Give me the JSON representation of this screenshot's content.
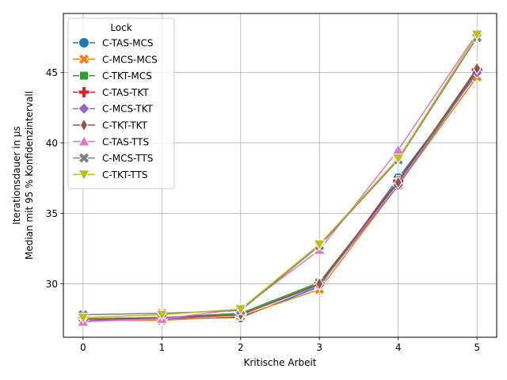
{
  "chart_data": {
    "type": "line",
    "title": "",
    "xlabel": "Kritische Arbeit",
    "ylabel_lines": [
      "Iterationsdauer in µs",
      "Median mit 95 % Konfidenzintervall"
    ],
    "x": [
      0,
      1,
      2,
      3,
      4,
      5
    ],
    "xlim": [
      -0.25,
      5.25
    ],
    "ylim": [
      26.2,
      49.2
    ],
    "xticks": [
      0,
      1,
      2,
      3,
      4,
      5
    ],
    "yticks": [
      30,
      35,
      40,
      45
    ],
    "grid": true,
    "legend": {
      "title": "Lock",
      "placement": "top-left"
    },
    "series": [
      {
        "name": "C-TAS-MCS",
        "color": "#1f77b4",
        "marker": "circle",
        "values": [
          27.5,
          27.5,
          27.6,
          29.8,
          37.5,
          44.9
        ]
      },
      {
        "name": "C-MCS-MCS",
        "color": "#ff7f0e",
        "marker": "x-filled",
        "values": [
          27.4,
          27.4,
          27.7,
          29.6,
          37.0,
          44.7
        ]
      },
      {
        "name": "C-TKT-MCS",
        "color": "#2ca02c",
        "marker": "square",
        "values": [
          27.5,
          27.6,
          27.9,
          30.1,
          37.2,
          45.1
        ]
      },
      {
        "name": "C-TAS-TKT",
        "color": "#d62728",
        "marker": "plus-filled",
        "values": [
          27.5,
          27.6,
          27.8,
          30.0,
          37.3,
          45.2
        ]
      },
      {
        "name": "C-MCS-TKT",
        "color": "#9467bd",
        "marker": "diamond",
        "values": [
          27.4,
          27.5,
          27.8,
          29.9,
          37.0,
          45.0
        ]
      },
      {
        "name": "C-TKT-TKT",
        "color": "#8c564b",
        "marker": "thin-diamond",
        "values": [
          27.5,
          27.6,
          27.8,
          30.0,
          37.2,
          45.3
        ]
      },
      {
        "name": "C-TAS-TTS",
        "color": "#e377c2",
        "marker": "triangle-up",
        "values": [
          27.3,
          27.5,
          28.2,
          32.4,
          39.5,
          47.8
        ]
      },
      {
        "name": "C-MCS-TTS",
        "color": "#7f7f7f",
        "marker": "x-filled",
        "values": [
          27.8,
          27.9,
          28.1,
          32.7,
          38.8,
          47.5
        ]
      },
      {
        "name": "C-TKT-TTS",
        "color": "#bcbd22",
        "marker": "triangle-down",
        "values": [
          27.6,
          27.8,
          28.2,
          32.8,
          38.9,
          47.7
        ]
      }
    ]
  }
}
